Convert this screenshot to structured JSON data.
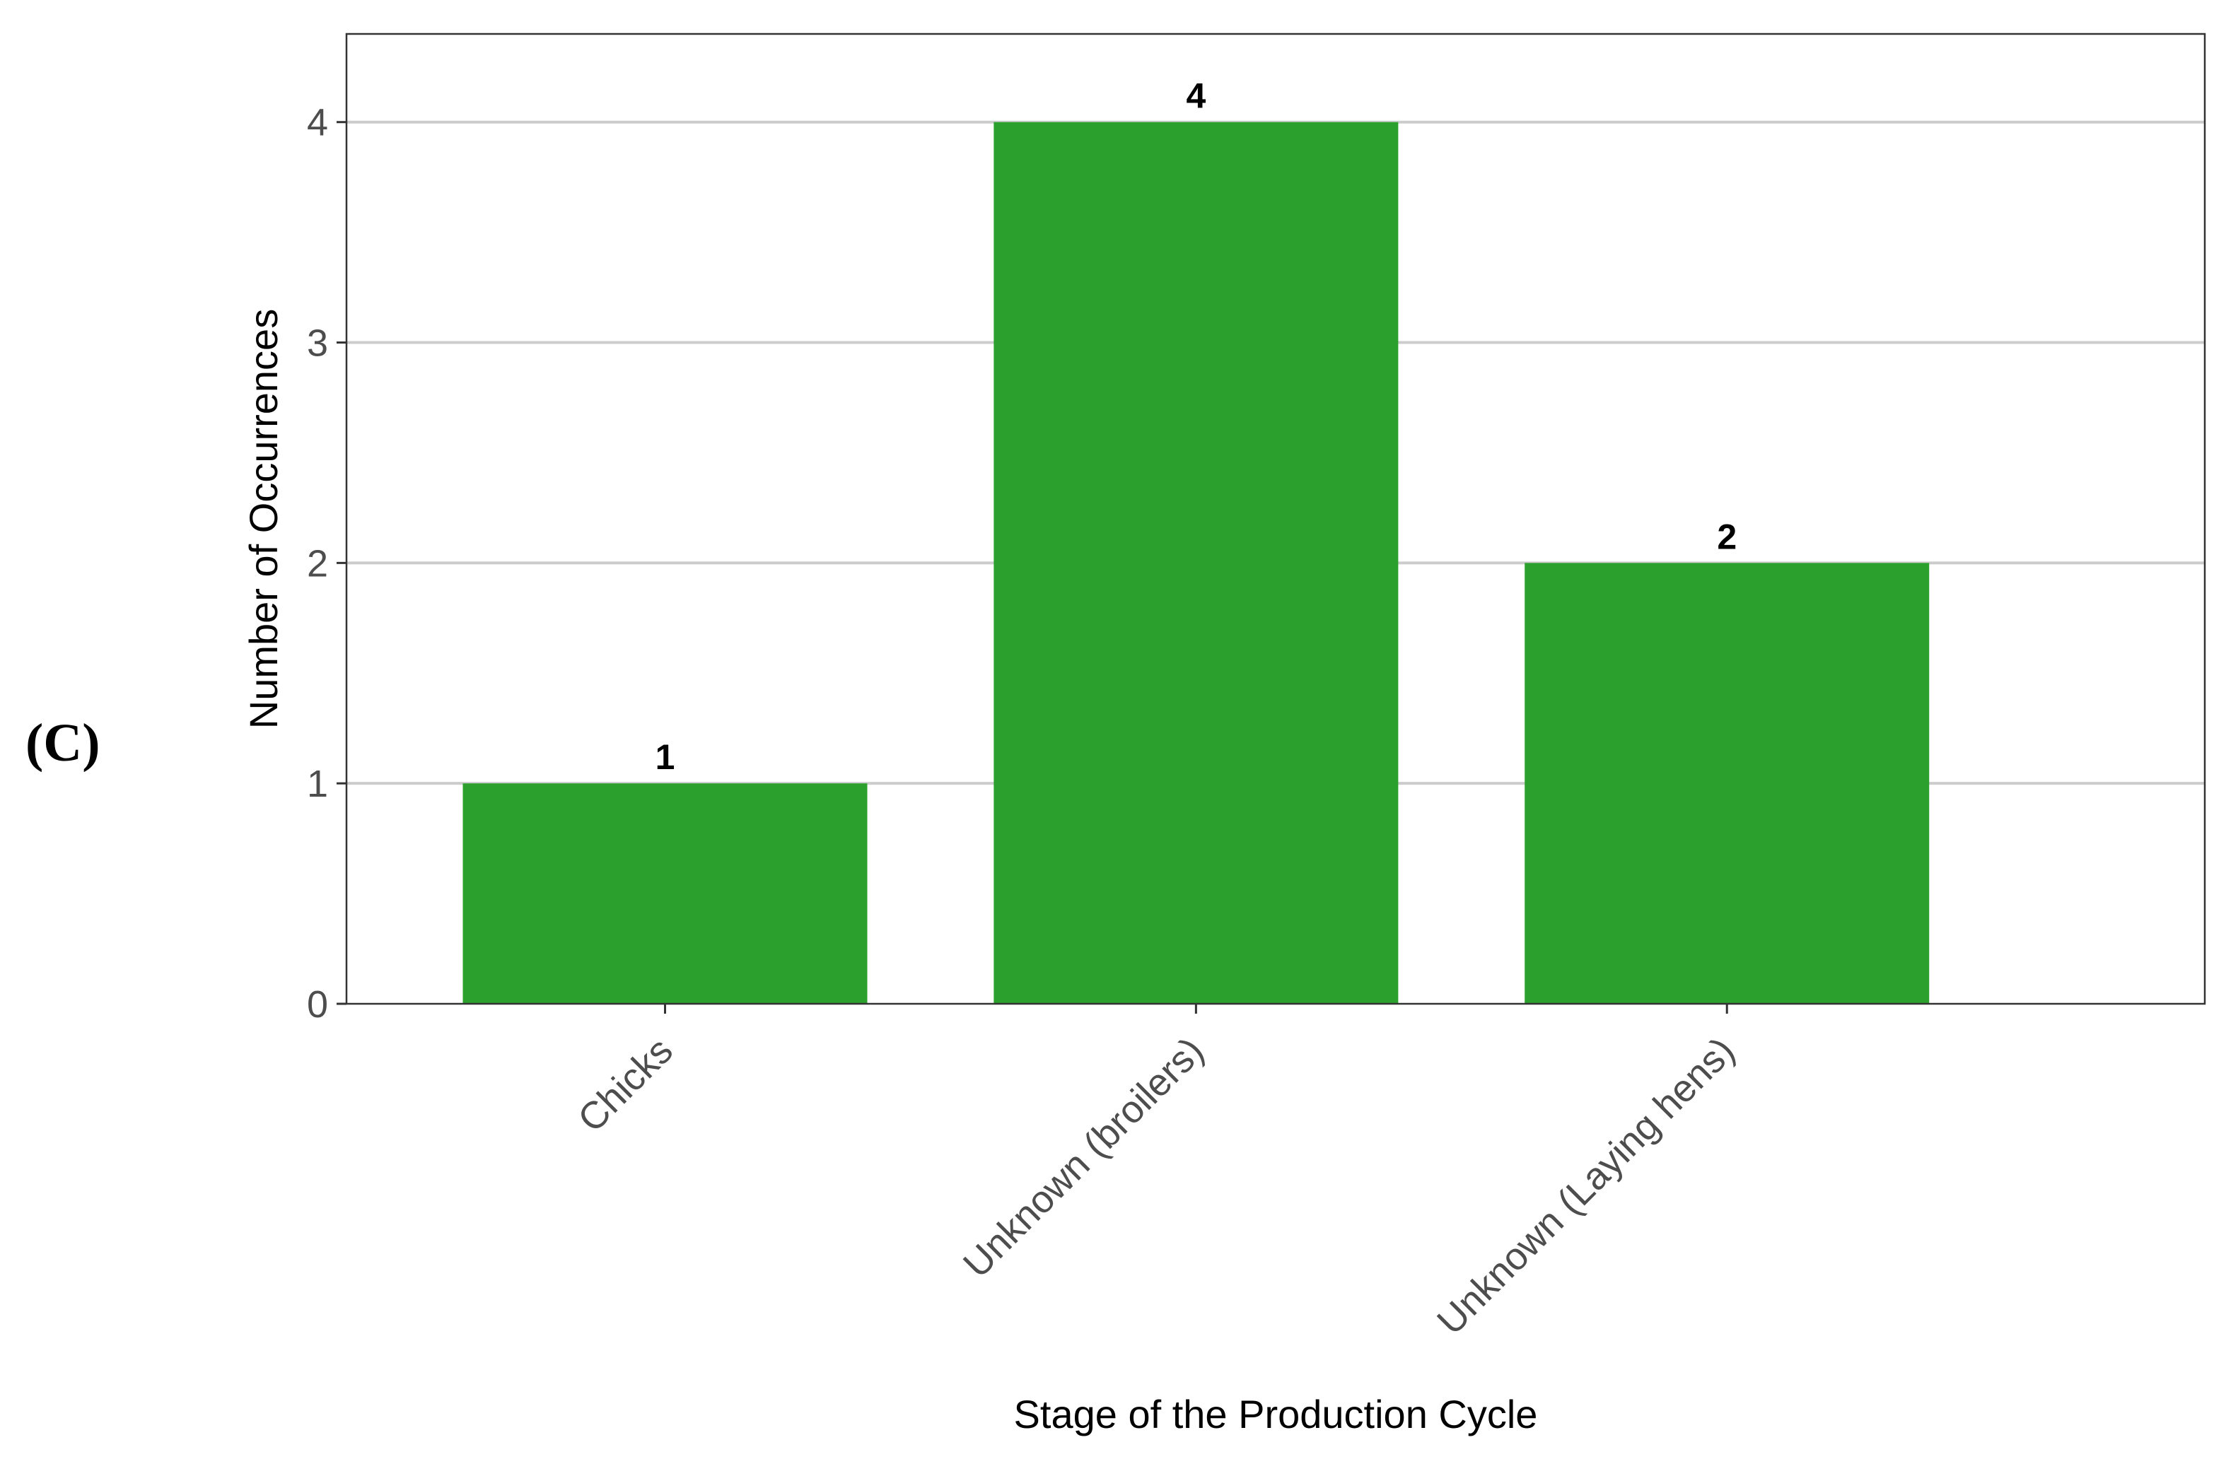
{
  "panel_label": "(C)",
  "chart_data": {
    "type": "bar",
    "categories": [
      "Chicks",
      "Unknown (broilers)",
      "Unknown (Laying hens)"
    ],
    "values": [
      1,
      4,
      2
    ],
    "data_labels": [
      "1",
      "4",
      "2"
    ],
    "title": "",
    "xlabel": "Stage of the Production Cycle",
    "ylabel": "Number of Occurrences",
    "ylim": [
      0,
      4.4
    ],
    "yticks": [
      0,
      1,
      2,
      3,
      4
    ],
    "ytick_labels": [
      "0",
      "1",
      "2",
      "3",
      "4"
    ],
    "grid": "horizontal-major",
    "bar_color": "#2ca02c",
    "gridline_color": "#cccccc",
    "frame_color": "#333333",
    "legend": "none"
  }
}
